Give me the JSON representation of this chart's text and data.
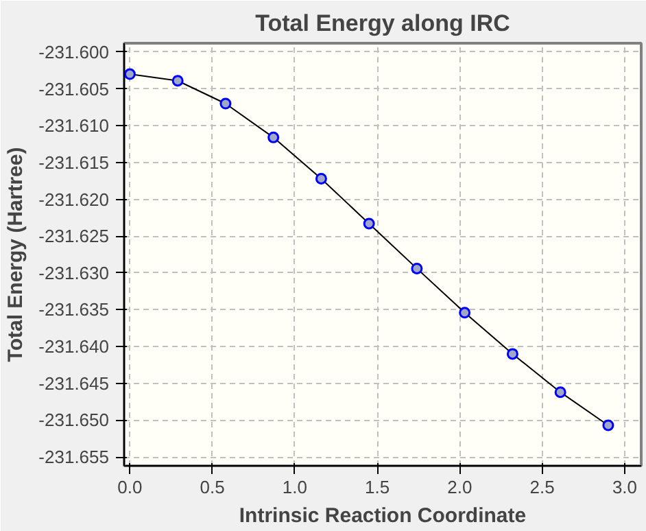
{
  "chart_data": {
    "type": "line",
    "title": "Total Energy along IRC",
    "xlabel": "Intrinsic Reaction Coordinate",
    "ylabel": "Total Energy (Hartree)",
    "x": [
      0,
      0.29,
      0.58,
      0.87,
      1.16,
      1.45,
      1.74,
      2.03,
      2.32,
      2.61,
      2.9
    ],
    "series": [
      {
        "color": "#0000ff",
        "values": [
          -231.603,
          -231.6039,
          -231.607,
          -231.6116,
          -231.6172,
          -231.6233,
          -231.6294,
          -231.6354,
          -231.641,
          -231.6462,
          -231.6507
        ]
      }
    ],
    "xlim": [
      -0.035,
      3.1
    ],
    "ylim": [
      -231.6562,
      -231.5988
    ],
    "xticks": [
      {
        "value": 0,
        "label": "0.0"
      },
      {
        "value": 0.5,
        "label": "0.5"
      },
      {
        "value": 1,
        "label": "1.0"
      },
      {
        "value": 1.5,
        "label": "1.5"
      },
      {
        "value": 2,
        "label": "2.0"
      },
      {
        "value": 2.5,
        "label": "2.5"
      },
      {
        "value": 3,
        "label": "3.0"
      }
    ],
    "yticks": [
      {
        "value": -231.6,
        "label": "-231.600"
      },
      {
        "value": -231.605,
        "label": "-231.605"
      },
      {
        "value": -231.61,
        "label": "-231.610"
      },
      {
        "value": -231.615,
        "label": "-231.615"
      },
      {
        "value": -231.62,
        "label": "-231.620"
      },
      {
        "value": -231.625,
        "label": "-231.625"
      },
      {
        "value": -231.63,
        "label": "-231.630"
      },
      {
        "value": -231.635,
        "label": "-231.635"
      },
      {
        "value": -231.64,
        "label": "-231.640"
      },
      {
        "value": -231.645,
        "label": "-231.645"
      },
      {
        "value": -231.65,
        "label": "-231.650"
      },
      {
        "value": -231.655,
        "label": "-231.655"
      }
    ],
    "grid": true,
    "marker": "circle",
    "line_style": "solid"
  }
}
